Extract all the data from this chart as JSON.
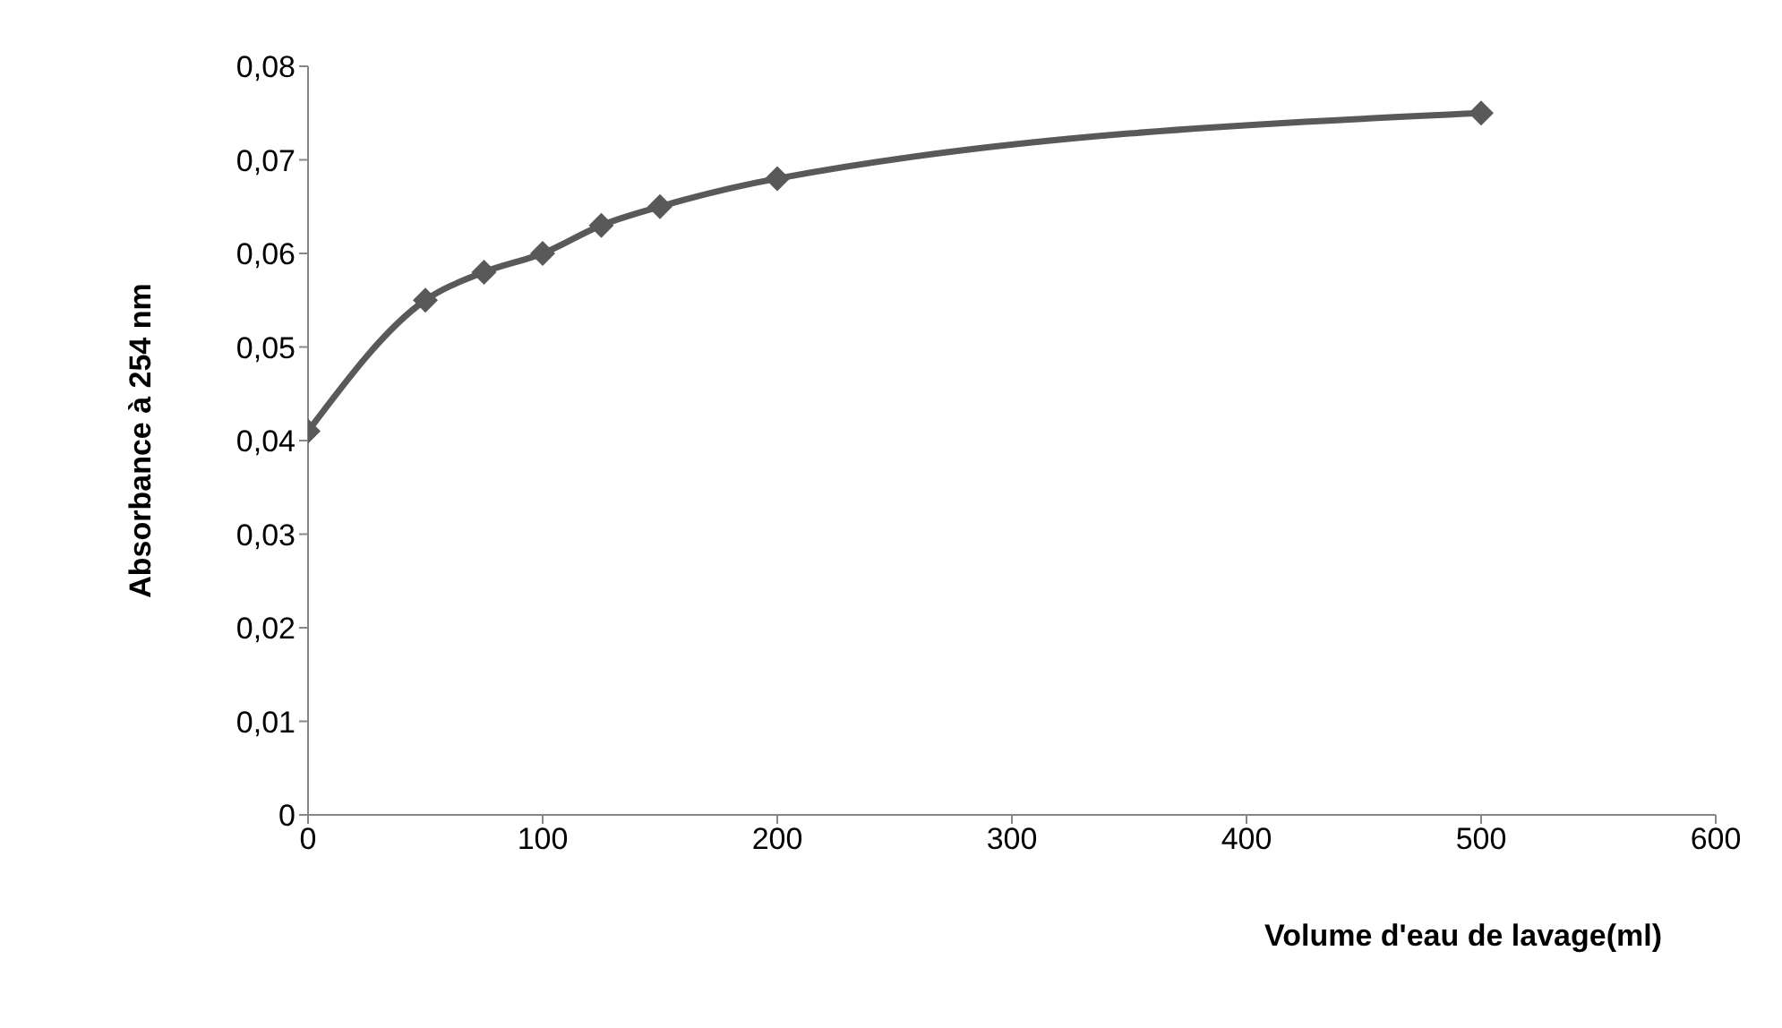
{
  "chart_data": {
    "type": "line",
    "xlabel": "Volume d'eau de lavage(ml)",
    "ylabel": "Absorbance à 254 nm",
    "x": [
      0,
      50,
      75,
      100,
      125,
      150,
      200,
      500
    ],
    "values": [
      0.041,
      0.055,
      0.058,
      0.06,
      0.063,
      0.065,
      0.068,
      0.075
    ],
    "color": "#595959",
    "marker": "diamond",
    "xlim": [
      0,
      600
    ],
    "xticks": [
      0,
      100,
      200,
      300,
      400,
      500,
      600
    ],
    "ylim": [
      0,
      0.08
    ],
    "yticks": [
      0,
      {
        "value": 0.01,
        "label": "0,01"
      },
      {
        "value": 0.02,
        "label": "0,02"
      },
      {
        "value": 0.03,
        "label": "0,03"
      },
      {
        "value": 0.04,
        "label": "0,04"
      },
      {
        "value": 0.05,
        "label": "0,05"
      },
      {
        "value": 0.06,
        "label": "0,06"
      },
      {
        "value": 0.07,
        "label": "0,07"
      },
      {
        "value": 0.08,
        "label": "0,08"
      }
    ]
  }
}
